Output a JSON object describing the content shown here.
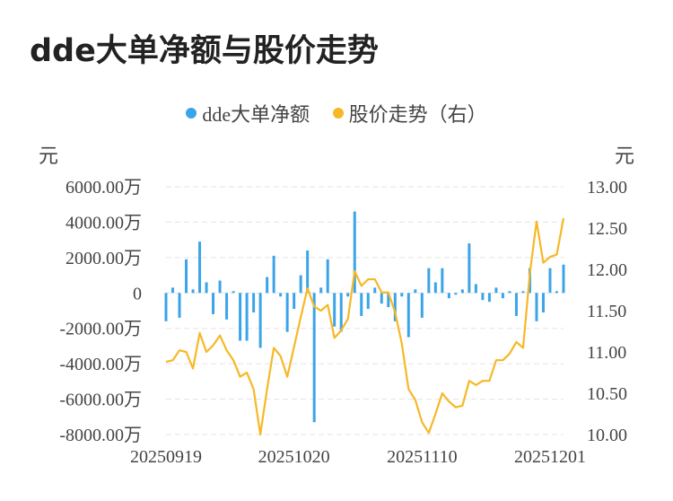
{
  "title": "dde大单净额与股价走势",
  "legend": [
    {
      "label": "dde大单净额",
      "color": "#3ba4e8"
    },
    {
      "label": "股价走势（右）",
      "color": "#f6b826"
    }
  ],
  "left_unit": "元",
  "right_unit": "元",
  "chart_data": {
    "type": "bar+line",
    "x_tick_labels": [
      "20250919",
      "20251020",
      "20251110",
      "20251201"
    ],
    "x_tick_indices": [
      0,
      19,
      38,
      57
    ],
    "left_axis": {
      "ticks": [
        6000,
        4000,
        2000,
        0,
        -2000,
        -4000,
        -6000,
        -8000
      ],
      "tick_labels": [
        "6000.00万",
        "4000.00万",
        "2000.00万",
        "0",
        "-2000.00万",
        "-4000.00万",
        "-6000.00万",
        "-8000.00万"
      ],
      "ylim": [
        -8000,
        6000
      ]
    },
    "right_axis": {
      "ticks": [
        13.0,
        12.5,
        12.0,
        11.5,
        11.0,
        10.5,
        10.0
      ],
      "tick_labels": [
        "13.00",
        "12.50",
        "12.00",
        "11.50",
        "11.00",
        "10.50",
        "10.00"
      ],
      "ylim": [
        10.0,
        13.0
      ]
    },
    "series": [
      {
        "name": "dde大单净额",
        "type": "bar",
        "color": "#3ba4e8",
        "values": [
          -1600,
          300,
          -1400,
          1900,
          200,
          2900,
          600,
          -1200,
          700,
          -1500,
          100,
          -2700,
          -2700,
          -1100,
          -3100,
          900,
          2100,
          -200,
          -2200,
          -900,
          1000,
          2400,
          -7300,
          300,
          1900,
          -1900,
          -2200,
          -200,
          4600,
          -1300,
          -900,
          300,
          -600,
          -800,
          -1600,
          -200,
          -2500,
          200,
          -1400,
          1400,
          600,
          1400,
          -300,
          -100,
          200,
          2800,
          500,
          -400,
          -500,
          300,
          -300,
          100,
          -1300,
          100,
          1400,
          -1600,
          -1100,
          1400,
          100,
          1600
        ]
      },
      {
        "name": "股价走势（右）",
        "type": "line",
        "color": "#f6b826",
        "values": [
          10.88,
          10.9,
          11.02,
          11.0,
          10.8,
          11.23,
          11.0,
          11.08,
          11.2,
          11.02,
          10.9,
          10.7,
          10.75,
          10.55,
          10.0,
          10.55,
          11.05,
          10.95,
          10.7,
          11.06,
          11.42,
          11.77,
          11.55,
          11.5,
          11.57,
          11.17,
          11.26,
          11.4,
          11.98,
          11.8,
          11.88,
          11.88,
          11.72,
          11.72,
          11.48,
          11.1,
          10.55,
          10.42,
          10.15,
          10.02,
          10.25,
          10.5,
          10.4,
          10.33,
          10.35,
          10.65,
          10.6,
          10.65,
          10.65,
          10.9,
          10.9,
          10.98,
          11.12,
          11.05,
          11.95,
          12.58,
          12.08,
          12.15,
          12.18,
          12.62
        ]
      }
    ],
    "grid": "horizontal-dashed",
    "legend_position": "top-center"
  }
}
